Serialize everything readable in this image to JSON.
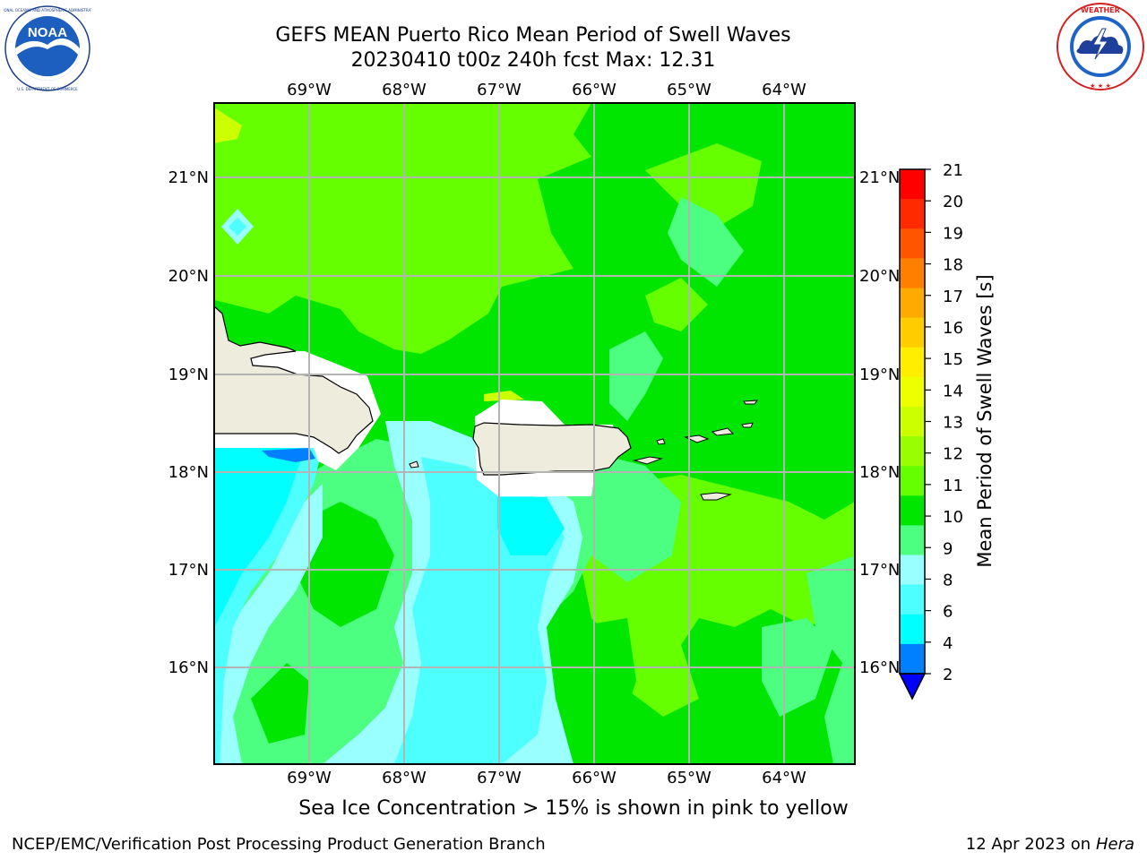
{
  "title": {
    "line1": "GEFS MEAN Puerto Rico Mean Period of Swell Waves",
    "line2": "20230410 t00z 240h fcst   Max: 12.31"
  },
  "subtitle": "Sea Ice Concentration > 15% is shown in pink to yellow",
  "footer": {
    "left": "NCEP/EMC/Verification Post Processing Product Generation Branch",
    "right_date": "12 Apr 2023 on ",
    "right_machine": "Hera"
  },
  "logos": {
    "noaa_label": "NOAA",
    "noaa_ring_text": "NATIONAL OCEANIC AND ATMOSPHERIC ADMINISTRATION · U.S. DEPARTMENT OF COMMERCE",
    "nws_ring_text": "NATIONAL WEATHER SERVICE"
  },
  "map": {
    "lon_ticks": [
      "69°W",
      "68°W",
      "67°W",
      "66°W",
      "65°W",
      "64°W"
    ],
    "lat_ticks": [
      "21°N",
      "20°N",
      "19°N",
      "18°N",
      "17°N",
      "16°N"
    ],
    "colors": {
      "land": "#eeecdc",
      "grid": "#b4b4b4",
      "green_dark": "#00e600",
      "green_light": "#66ff00",
      "lime": "#ccff00",
      "aqua_light": "#99ffff",
      "aqua": "#4dffff",
      "cyan": "#00ffff",
      "mint": "#4dff80"
    }
  },
  "colorbar": {
    "label": "Mean Period of Swell Waves [s]",
    "ticks": [
      "21",
      "20",
      "19",
      "18",
      "17",
      "16",
      "15",
      "14",
      "13",
      "12",
      "11",
      "10",
      "9",
      "8",
      "6",
      "4",
      "2"
    ],
    "colors": [
      "#ff0000",
      "#ff2a00",
      "#ff5500",
      "#ff8000",
      "#ffaa00",
      "#ffcc00",
      "#ffee00",
      "#eeff00",
      "#ccff00",
      "#99ff00",
      "#66ff00",
      "#00e600",
      "#4dff80",
      "#99ffff",
      "#4dffff",
      "#00ffff",
      "#0080ff",
      "#0000ff"
    ]
  }
}
